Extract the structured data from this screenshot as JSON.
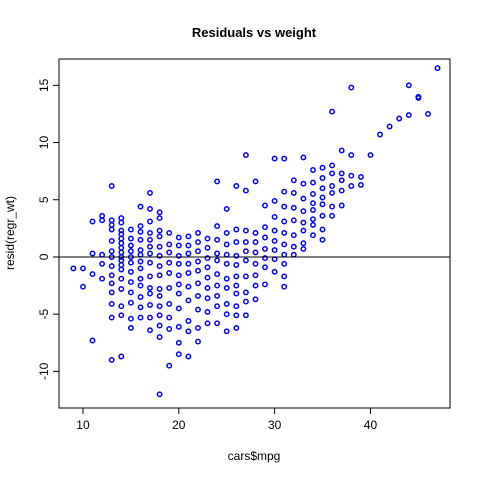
{
  "chart_data": {
    "type": "scatter",
    "title": "Residuals vs weight",
    "xlabel": "cars$mpg",
    "ylabel": "resid(regr_wt)",
    "xlim": [
      7.5,
      48.3
    ],
    "ylim": [
      -13.2,
      17.3
    ],
    "x_ticks": [
      10,
      20,
      30,
      40
    ],
    "y_ticks": [
      -10,
      -5,
      0,
      5,
      10,
      15
    ],
    "grid": false,
    "hline": 0,
    "marker_color": "#0000ff",
    "line_color": "#000000",
    "points": [
      [
        9,
        -1
      ],
      [
        10,
        -1
      ],
      [
        10,
        -2.6
      ],
      [
        11,
        -7.3
      ],
      [
        11,
        0.3
      ],
      [
        11,
        3.1
      ],
      [
        11,
        -1.5
      ],
      [
        12,
        0.2
      ],
      [
        12,
        3.2
      ],
      [
        12,
        3.6
      ],
      [
        12,
        -0.6
      ],
      [
        12,
        -1.9
      ],
      [
        13,
        6.2
      ],
      [
        13,
        3.2
      ],
      [
        13,
        2.8
      ],
      [
        13,
        2.4
      ],
      [
        13,
        1.4
      ],
      [
        13,
        0.5
      ],
      [
        13,
        0
      ],
      [
        13,
        -0.8
      ],
      [
        13,
        -1.6
      ],
      [
        13,
        -2.3
      ],
      [
        13,
        -3.1
      ],
      [
        13,
        -4.1
      ],
      [
        13,
        -5.3
      ],
      [
        13,
        -9
      ],
      [
        14,
        3.4
      ],
      [
        14,
        3
      ],
      [
        14,
        2.3
      ],
      [
        14,
        2
      ],
      [
        14,
        1.6
      ],
      [
        14,
        1.2
      ],
      [
        14,
        0.8
      ],
      [
        14,
        0.4
      ],
      [
        14,
        0
      ],
      [
        14,
        -0.3
      ],
      [
        14,
        -0.7
      ],
      [
        14,
        -1.1
      ],
      [
        14,
        -1.9
      ],
      [
        14,
        -2.8
      ],
      [
        14,
        -4.3
      ],
      [
        14,
        -5.1
      ],
      [
        14,
        -8.7
      ],
      [
        15,
        2.4
      ],
      [
        15,
        1.6
      ],
      [
        15,
        1
      ],
      [
        15,
        0.5
      ],
      [
        15,
        0
      ],
      [
        15,
        -0.5
      ],
      [
        15,
        -1.3
      ],
      [
        15,
        -2.2
      ],
      [
        15,
        -3.1
      ],
      [
        15,
        -4
      ],
      [
        15,
        -5.4
      ],
      [
        15,
        -6.2
      ],
      [
        16,
        4.4
      ],
      [
        16,
        2.7
      ],
      [
        16,
        2.2
      ],
      [
        16,
        1.5
      ],
      [
        16,
        0.6
      ],
      [
        16,
        0.2
      ],
      [
        16,
        -0.4
      ],
      [
        16,
        -1
      ],
      [
        16,
        -1.9
      ],
      [
        16,
        -2.5
      ],
      [
        16,
        -3.5
      ],
      [
        16,
        -4.4
      ],
      [
        16,
        -5.3
      ],
      [
        17,
        5.6
      ],
      [
        17,
        4.2
      ],
      [
        17,
        3.1
      ],
      [
        17,
        2.1
      ],
      [
        17,
        1.5
      ],
      [
        17,
        0.9
      ],
      [
        17,
        0.3
      ],
      [
        17,
        -0.5
      ],
      [
        17,
        -1.7
      ],
      [
        17,
        -2.7
      ],
      [
        17,
        -3.2
      ],
      [
        17,
        -4.2
      ],
      [
        17,
        -5.3
      ],
      [
        17,
        -6.4
      ],
      [
        18,
        3.9
      ],
      [
        18,
        3.4
      ],
      [
        18,
        2.3
      ],
      [
        18,
        1.8
      ],
      [
        18,
        0.9
      ],
      [
        18,
        0.1
      ],
      [
        18,
        -0.8
      ],
      [
        18,
        -1.6
      ],
      [
        18,
        -2.8
      ],
      [
        18,
        -3.4
      ],
      [
        18,
        -4.3
      ],
      [
        18,
        -5.1
      ],
      [
        18,
        -6
      ],
      [
        18,
        -7
      ],
      [
        18,
        -12
      ],
      [
        19,
        2.1
      ],
      [
        19,
        1.1
      ],
      [
        19,
        0.4
      ],
      [
        19,
        -0.5
      ],
      [
        19,
        -1.4
      ],
      [
        19,
        -2.7
      ],
      [
        19,
        -4.1
      ],
      [
        19,
        -5.3
      ],
      [
        19,
        -6.3
      ],
      [
        19,
        -9.5
      ],
      [
        20,
        1.7
      ],
      [
        20,
        1
      ],
      [
        20,
        0.1
      ],
      [
        20,
        -0.6
      ],
      [
        20,
        -1.6
      ],
      [
        20,
        -2.4
      ],
      [
        20,
        -3.2
      ],
      [
        20,
        -4.5
      ],
      [
        20,
        -6.1
      ],
      [
        20,
        -7.5
      ],
      [
        20,
        -8.5
      ],
      [
        21,
        1.8
      ],
      [
        21,
        1
      ],
      [
        21,
        0.3
      ],
      [
        21,
        -0.6
      ],
      [
        21,
        -1.4
      ],
      [
        21,
        -2.6
      ],
      [
        21,
        -3.8
      ],
      [
        21,
        -5.6
      ],
      [
        21,
        -6.5
      ],
      [
        21,
        -8.7
      ],
      [
        22,
        2.1
      ],
      [
        22,
        1.3
      ],
      [
        22,
        0.5
      ],
      [
        22,
        -0.4
      ],
      [
        22,
        -1.2
      ],
      [
        22,
        -2.3
      ],
      [
        22,
        -3.4
      ],
      [
        22,
        -4.6
      ],
      [
        22,
        -6.2
      ],
      [
        22,
        -7.4
      ],
      [
        23,
        1.6
      ],
      [
        23,
        0.8
      ],
      [
        23,
        -0.1
      ],
      [
        23,
        -0.9
      ],
      [
        23,
        -1.8
      ],
      [
        23,
        -2.7
      ],
      [
        23,
        -3.6
      ],
      [
        23,
        -4.8
      ],
      [
        23,
        -5.8
      ],
      [
        24,
        6.6
      ],
      [
        24,
        2.7
      ],
      [
        24,
        1.5
      ],
      [
        24,
        0.3
      ],
      [
        24,
        -0.3
      ],
      [
        24,
        -1.5
      ],
      [
        24,
        -2.5
      ],
      [
        24,
        -3.4
      ],
      [
        24,
        -4.3
      ],
      [
        24,
        -5.8
      ],
      [
        25,
        4.2
      ],
      [
        25,
        2.1
      ],
      [
        25,
        1.1
      ],
      [
        25,
        0.2
      ],
      [
        25,
        -0.6
      ],
      [
        25,
        -1.9
      ],
      [
        25,
        -2.7
      ],
      [
        25,
        -4.1
      ],
      [
        25,
        -5
      ],
      [
        25,
        -6.5
      ],
      [
        26,
        6.2
      ],
      [
        26,
        2.4
      ],
      [
        26,
        1.3
      ],
      [
        26,
        0.1
      ],
      [
        26,
        -0.7
      ],
      [
        26,
        -1.7
      ],
      [
        26,
        -2.5
      ],
      [
        26,
        -3.2
      ],
      [
        26,
        -4.3
      ],
      [
        26,
        -5.1
      ],
      [
        26,
        -6.2
      ],
      [
        27,
        8.9
      ],
      [
        27,
        5.8
      ],
      [
        27,
        2.3
      ],
      [
        27,
        1.3
      ],
      [
        27,
        0.5
      ],
      [
        27,
        -0.3
      ],
      [
        27,
        -1.7
      ],
      [
        27,
        -3.1
      ],
      [
        27,
        -3.9
      ],
      [
        27,
        -5.1
      ],
      [
        28,
        6.6
      ],
      [
        28,
        2.1
      ],
      [
        28,
        1.3
      ],
      [
        28,
        0.4
      ],
      [
        28,
        -0.6
      ],
      [
        28,
        -1.6
      ],
      [
        28,
        -2.5
      ],
      [
        28,
        -3.7
      ],
      [
        29,
        4.5
      ],
      [
        29,
        2.6
      ],
      [
        29,
        1.7
      ],
      [
        29,
        0.7
      ],
      [
        29,
        -0.1
      ],
      [
        29,
        -0.9
      ],
      [
        29,
        -2.4
      ],
      [
        30,
        8.6
      ],
      [
        30,
        4.9
      ],
      [
        30,
        3.5
      ],
      [
        30,
        2.3
      ],
      [
        30,
        1.4
      ],
      [
        30,
        0.6
      ],
      [
        30,
        -0.2
      ],
      [
        30,
        -1.3
      ],
      [
        31,
        8.6
      ],
      [
        31,
        5.7
      ],
      [
        31,
        4.4
      ],
      [
        31,
        3.1
      ],
      [
        31,
        2.1
      ],
      [
        31,
        1.1
      ],
      [
        31,
        0.2
      ],
      [
        31,
        -0.6
      ],
      [
        31,
        -1.7
      ],
      [
        31,
        -2.6
      ],
      [
        32,
        6.7
      ],
      [
        32,
        5.6
      ],
      [
        32,
        4.3
      ],
      [
        32,
        3.2
      ],
      [
        32,
        1.9
      ],
      [
        32,
        0.9
      ],
      [
        32,
        0.2
      ],
      [
        33,
        8.7
      ],
      [
        33,
        6.4
      ],
      [
        33,
        5.1
      ],
      [
        33,
        4
      ],
      [
        33,
        3
      ],
      [
        33,
        2.3
      ],
      [
        33,
        1.2
      ],
      [
        33,
        0.7
      ],
      [
        34,
        7.6
      ],
      [
        34,
        6.5
      ],
      [
        34,
        5.5
      ],
      [
        34,
        4.7
      ],
      [
        34,
        4.1
      ],
      [
        34,
        3.3
      ],
      [
        34,
        2.8
      ],
      [
        34,
        1.9
      ],
      [
        35,
        7.8
      ],
      [
        35,
        6.9
      ],
      [
        35,
        6
      ],
      [
        35,
        5.2
      ],
      [
        35,
        4.6
      ],
      [
        35,
        3.6
      ],
      [
        35,
        2.4
      ],
      [
        35,
        1.5
      ],
      [
        36,
        12.7
      ],
      [
        36,
        8
      ],
      [
        36,
        7.3
      ],
      [
        36,
        6.2
      ],
      [
        36,
        5.6
      ],
      [
        36,
        4.4
      ],
      [
        36,
        3.6
      ],
      [
        37,
        9.3
      ],
      [
        37,
        7.3
      ],
      [
        37,
        6.7
      ],
      [
        37,
        5.8
      ],
      [
        37,
        4.5
      ],
      [
        38,
        14.8
      ],
      [
        38,
        8.9
      ],
      [
        38,
        7.1
      ],
      [
        38,
        6.2
      ],
      [
        39,
        7
      ],
      [
        39,
        6.3
      ],
      [
        40,
        8.9
      ],
      [
        41,
        10.7
      ],
      [
        42,
        11.4
      ],
      [
        43,
        12.1
      ],
      [
        44,
        15
      ],
      [
        44,
        12.4
      ],
      [
        45,
        14
      ],
      [
        45,
        13.9
      ],
      [
        46,
        12.5
      ],
      [
        47,
        16.5
      ]
    ]
  }
}
